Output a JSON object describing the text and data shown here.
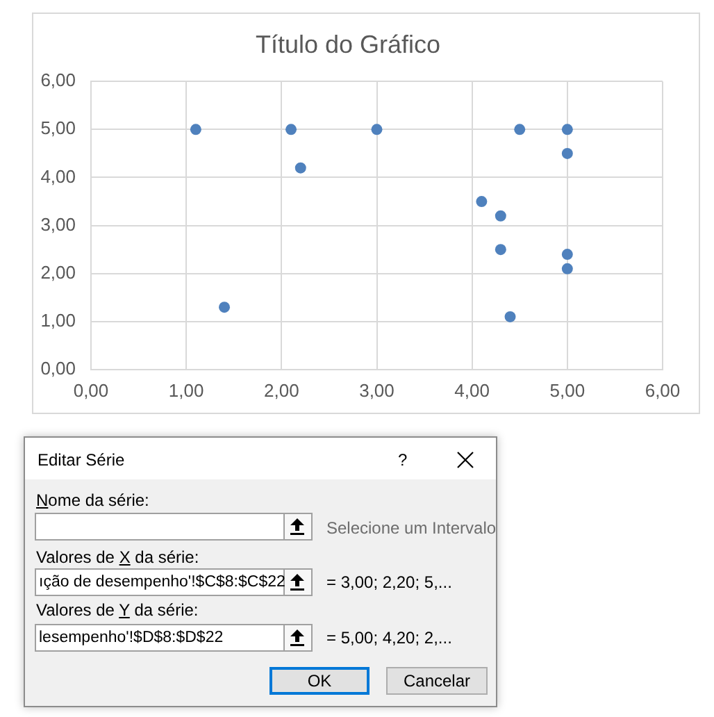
{
  "chart_data": [
    {
      "type": "scatter",
      "title": "Título do Gráfico",
      "x": [
        3,
        2.2,
        5,
        1.1,
        2.1,
        1.4,
        4.5,
        5,
        5,
        4.1,
        4.3,
        4.3,
        5,
        4.4
      ],
      "values": [
        5,
        4.2,
        2.4,
        5,
        5,
        1.3,
        5,
        5,
        4.5,
        3.5,
        3.2,
        2.5,
        2.1,
        1.1
      ],
      "color": "#4f81bd",
      "marker": "circle",
      "xlim": [
        0,
        6
      ],
      "ylim": [
        0,
        6
      ],
      "xticks": [
        {
          "value": 0,
          "label": "0,00"
        },
        {
          "value": 1,
          "label": "1,00"
        },
        {
          "value": 2,
          "label": "2,00"
        },
        {
          "value": 3,
          "label": "3,00"
        },
        {
          "value": 4,
          "label": "4,00"
        },
        {
          "value": 5,
          "label": "5,00"
        },
        {
          "value": 6,
          "label": "6,00"
        }
      ],
      "yticks": [
        {
          "value": 0,
          "label": "0,00"
        },
        {
          "value": 1,
          "label": "1,00"
        },
        {
          "value": 2,
          "label": "2,00"
        },
        {
          "value": 3,
          "label": "3,00"
        },
        {
          "value": 4,
          "label": "4,00"
        },
        {
          "value": 5,
          "label": "5,00"
        },
        {
          "value": 6,
          "label": "6,00"
        }
      ],
      "grid": true
    },
    {
      "type": "other",
      "title": "Editar Série",
      "annotations": [
        "?",
        "Nome da série:",
        "Selecione um Intervalo",
        "Valores de X da série:",
        "ıção de desempenho'!$C$8:$C$22",
        "= 3,00; 2,20; 5,...",
        "Valores de Y da série:",
        "lesempenho'!$D$8:$D$22",
        "= 5,00; 4,20; 2,...",
        "OK",
        "Cancelar"
      ]
    }
  ]
}
